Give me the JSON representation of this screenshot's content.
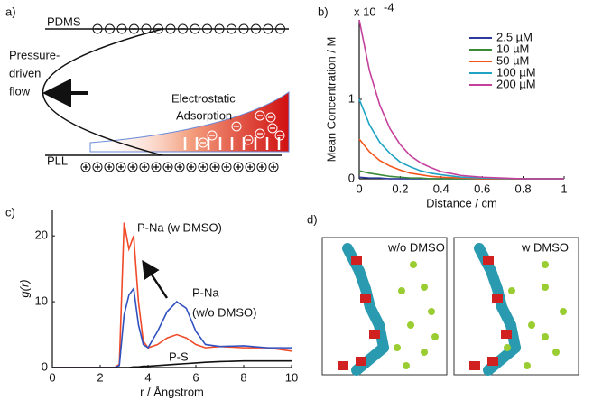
{
  "panel_labels": [
    "a)",
    "b)",
    "c)",
    "d)"
  ],
  "schematic": {
    "top_surface": "PDMS",
    "bottom_surface": "PLL",
    "flow_label": [
      "Pressure-",
      "driven",
      "flow"
    ],
    "adsorption_label": [
      "Electrostatic",
      "Adsorption"
    ]
  },
  "snapshots": [
    "w/o DMSO",
    "w DMSO"
  ],
  "chart_data": [
    {
      "type": "line",
      "xlabel": "Distance / cm",
      "ylabel": "Mean Concentration / M",
      "y_multiplier": {
        "base": "x 10",
        "exponent": "-4"
      },
      "x": [
        0,
        0.05,
        0.1,
        0.15,
        0.2,
        0.25,
        0.3,
        0.35,
        0.4,
        0.5,
        0.6,
        0.8,
        1
      ],
      "xlim": [
        0,
        1
      ],
      "xticks": [
        0,
        0.2,
        0.4,
        0.6,
        0.8,
        1
      ],
      "ylim": [
        0,
        2
      ],
      "yticks": [
        0,
        1
      ],
      "legend": "upper right",
      "series": [
        {
          "name": "2.5 µM",
          "color": "#2b3a9c",
          "values": [
            0.02,
            0.01,
            0.01,
            0,
            0,
            0,
            0,
            0,
            0,
            0,
            0,
            0,
            0
          ]
        },
        {
          "name": "10 µM",
          "color": "#3a8a3a",
          "values": [
            0.1,
            0.07,
            0.05,
            0.03,
            0.02,
            0.01,
            0.01,
            0,
            0,
            0,
            0,
            0,
            0
          ]
        },
        {
          "name": "50 µM",
          "color": "#f0561e",
          "values": [
            0.5,
            0.34,
            0.23,
            0.16,
            0.11,
            0.07,
            0.05,
            0.03,
            0.02,
            0.01,
            0,
            0,
            0
          ]
        },
        {
          "name": "100 µM",
          "color": "#1fa3c2",
          "values": [
            1,
            0.68,
            0.46,
            0.32,
            0.21,
            0.15,
            0.1,
            0.07,
            0.05,
            0.02,
            0.01,
            0,
            0
          ]
        },
        {
          "name": "200 µM",
          "color": "#c4409c",
          "values": [
            2,
            1.36,
            0.93,
            0.63,
            0.43,
            0.29,
            0.2,
            0.14,
            0.09,
            0.04,
            0.02,
            0,
            0
          ]
        }
      ]
    },
    {
      "type": "line",
      "xlabel": "r / Ångstrom",
      "ylabel": "g(r)",
      "x": [
        0,
        2.6,
        2.8,
        3.0,
        3.2,
        3.4,
        3.6,
        3.8,
        4.0,
        4.4,
        4.8,
        5.2,
        5.6,
        6.0,
        6.4,
        7,
        8,
        9,
        10
      ],
      "xlim": [
        0,
        10
      ],
      "xticks": [
        0,
        2,
        4,
        6,
        8,
        10
      ],
      "ylim": [
        0,
        24
      ],
      "yticks": [
        0,
        10,
        20
      ],
      "series": [
        {
          "name": [
            "P-Na (w DMSO)"
          ],
          "color": "#f04a28",
          "values": [
            0,
            0,
            0.5,
            22,
            18,
            20,
            10,
            4,
            3,
            3.5,
            4.5,
            5,
            4.5,
            3.5,
            3,
            3.2,
            3,
            3,
            2.5
          ]
        },
        {
          "name": [
            "P-Na",
            "(w/o DMSO)"
          ],
          "color": "#3050c0",
          "values": [
            0,
            0,
            0.3,
            8,
            11,
            12,
            6.5,
            3.5,
            3,
            5.5,
            8.5,
            10,
            9,
            5.5,
            3.5,
            3.2,
            3.3,
            3,
            3
          ]
        },
        {
          "name": [
            "P-S"
          ],
          "color": "#111111",
          "values": [
            0,
            0,
            0,
            0,
            0,
            0.1,
            0.1,
            0.2,
            0.2,
            0.3,
            0.4,
            0.5,
            0.6,
            0.7,
            0.8,
            0.9,
            1,
            1,
            1
          ]
        }
      ]
    }
  ]
}
